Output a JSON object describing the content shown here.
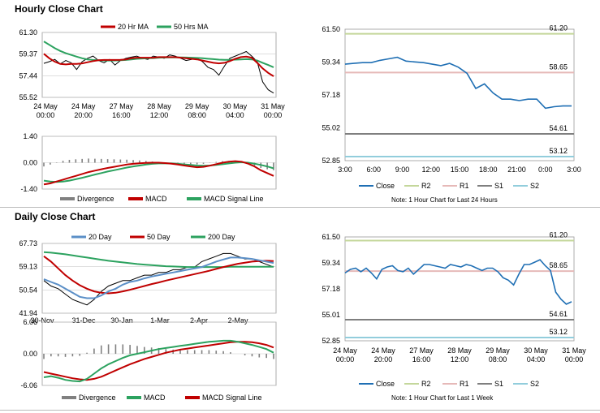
{
  "hourly": {
    "title": "Hourly Close Chart",
    "price_chart": {
      "type": "line",
      "legend": [
        "20 Hr MA",
        "50 Hrs MA"
      ],
      "colors": {
        "ma20": "#c00000",
        "ma50": "#2ca25f",
        "price": "#000000"
      },
      "y_ticks": [
        "61.30",
        "59.37",
        "57.44",
        "55.52"
      ],
      "ylim": [
        55.52,
        61.3
      ],
      "x_ticks": [
        [
          "24 May",
          "00:00"
        ],
        [
          "24 May",
          "20:00"
        ],
        [
          "27 May",
          "16:00"
        ],
        [
          "28 May",
          "12:00"
        ],
        [
          "29 May",
          "08:00"
        ],
        [
          "30 May",
          "04:00"
        ],
        [
          "31 May",
          "00:00"
        ]
      ],
      "price": [
        58.55,
        58.7,
        58.9,
        58.5,
        58.8,
        58.6,
        58.0,
        58.7,
        59.0,
        59.2,
        58.8,
        58.6,
        58.9,
        58.4,
        58.8,
        59.0,
        59.1,
        59.2,
        59.0,
        58.9,
        59.2,
        59.1,
        59.0,
        59.3,
        59.2,
        59.0,
        58.8,
        58.9,
        59.0,
        58.7,
        58.2,
        58.0,
        57.5,
        58.3,
        59.0,
        59.2,
        59.4,
        59.6,
        59.2,
        58.7,
        56.9,
        56.2,
        55.9
      ],
      "ma20": [
        59.4,
        59.0,
        58.7,
        58.5,
        58.45,
        58.5,
        58.5,
        58.55,
        58.65,
        58.75,
        58.82,
        58.85,
        58.85,
        58.85,
        58.86,
        58.9,
        59.0,
        59.05,
        59.05,
        59.05,
        59.05,
        59.1,
        59.1,
        59.1,
        59.1,
        59.05,
        59.0,
        58.95,
        58.9,
        58.8,
        58.7,
        58.6,
        58.55,
        58.6,
        58.75,
        58.95,
        59.1,
        59.15,
        59.05,
        58.6,
        58.1,
        57.7,
        57.4
      ],
      "ma50": [
        60.5,
        60.2,
        59.9,
        59.65,
        59.45,
        59.3,
        59.15,
        59.0,
        58.9,
        58.85,
        58.82,
        58.8,
        58.8,
        58.8,
        58.82,
        58.85,
        58.9,
        58.95,
        58.98,
        59.0,
        59.02,
        59.05,
        59.07,
        59.08,
        59.09,
        59.08,
        59.07,
        59.05,
        59.03,
        59.0,
        58.96,
        58.92,
        58.88,
        58.86,
        58.86,
        58.88,
        58.9,
        58.92,
        58.9,
        58.8,
        58.6,
        58.4,
        58.2
      ]
    },
    "macd_chart": {
      "type": "line",
      "y_ticks": [
        "1.40",
        "0.00",
        "-1.40"
      ],
      "ylim": [
        -1.4,
        1.4
      ],
      "legend": [
        "Divergence",
        "MACD",
        "MACD Signal Line"
      ],
      "colors": {
        "divergence": "#808080",
        "macd": "#c00000",
        "signal": "#2ca25f"
      },
      "macd": [
        -1.15,
        -1.1,
        -1.0,
        -0.9,
        -0.8,
        -0.7,
        -0.6,
        -0.5,
        -0.42,
        -0.35,
        -0.28,
        -0.22,
        -0.16,
        -0.1,
        -0.06,
        -0.03,
        -0.01,
        0.0,
        0.0,
        -0.02,
        -0.05,
        -0.1,
        -0.15,
        -0.2,
        -0.24,
        -0.22,
        -0.16,
        -0.08,
        0.0,
        0.05,
        0.08,
        0.05,
        -0.05,
        -0.2,
        -0.4,
        -0.55,
        -0.7
      ],
      "signal": [
        -0.95,
        -1.0,
        -1.02,
        -1.0,
        -0.95,
        -0.88,
        -0.8,
        -0.72,
        -0.63,
        -0.55,
        -0.47,
        -0.4,
        -0.33,
        -0.26,
        -0.2,
        -0.15,
        -0.1,
        -0.06,
        -0.04,
        -0.03,
        -0.04,
        -0.06,
        -0.09,
        -0.12,
        -0.15,
        -0.16,
        -0.15,
        -0.12,
        -0.08,
        -0.04,
        0.0,
        0.02,
        0.0,
        -0.05,
        -0.12,
        -0.2,
        -0.3
      ]
    },
    "pivot_chart": {
      "type": "line",
      "y_ticks": [
        "61.50",
        "59.34",
        "57.18",
        "55.02",
        "52.85"
      ],
      "ylim": [
        52.85,
        61.5
      ],
      "x_ticks": [
        "3:00",
        "6:00",
        "9:00",
        "12:00",
        "15:00",
        "18:00",
        "21:00",
        "0:00",
        "3:00"
      ],
      "close": [
        59.2,
        59.25,
        59.3,
        59.3,
        59.45,
        59.55,
        59.65,
        59.4,
        59.35,
        59.3,
        59.2,
        59.1,
        59.25,
        59.0,
        58.6,
        57.6,
        57.9,
        57.3,
        56.9,
        56.9,
        56.8,
        56.9,
        56.9,
        56.3,
        56.4,
        56.45,
        56.45
      ],
      "levels": [
        {
          "name": "R2",
          "value": 61.2,
          "label": "61.20",
          "color": "#c4d79b"
        },
        {
          "name": "R1",
          "value": 58.65,
          "label": "58.65",
          "color": "#e6b9b8"
        },
        {
          "name": "S1",
          "value": 54.61,
          "label": "54.61",
          "color": "#7f7f7f"
        },
        {
          "name": "S2",
          "value": 53.12,
          "label": "53.12",
          "color": "#92cddc"
        }
      ],
      "close_color": "#1f6fb4",
      "legend": [
        "Close",
        "R2",
        "R1",
        "S1",
        "S2"
      ],
      "note": "Note: 1 Hour Chart for Last 24 Hours"
    }
  },
  "daily": {
    "title": "Daily Close Chart",
    "price_chart": {
      "type": "line",
      "legend": [
        "20 Day",
        "50 Day",
        "200 Day"
      ],
      "colors": {
        "d20": "#5b8fc7",
        "d50": "#c00000",
        "d200": "#2ca25f",
        "price": "#000000"
      },
      "y_ticks": [
        "67.73",
        "59.13",
        "50.54",
        "41.94"
      ],
      "ylim": [
        41.94,
        67.73
      ],
      "x_ticks": [
        "30-Nov",
        "31-Dec",
        "30-Jan",
        "1-Mar",
        "2-Apr",
        "2-May"
      ],
      "price": [
        54,
        52,
        51,
        49,
        47,
        46,
        45,
        47,
        50,
        52,
        53,
        54,
        54,
        55,
        56,
        56,
        57,
        57,
        58,
        58,
        59,
        59,
        61,
        62,
        63,
        64,
        64,
        63,
        62,
        62,
        61,
        60,
        59
      ],
      "d20": [
        54.5,
        53.5,
        52.5,
        51,
        49.5,
        48,
        47.5,
        47.5,
        48.5,
        50,
        51,
        52.5,
        53.5,
        54,
        54.8,
        55.5,
        56,
        56.5,
        57,
        57.5,
        58,
        58.5,
        59,
        60,
        61,
        61.8,
        62.5,
        62.5,
        62.3,
        62,
        61.5,
        61,
        60.5
      ],
      "d50": [
        63,
        61,
        58.5,
        56,
        54,
        52.3,
        51,
        50,
        49.5,
        49.3,
        49.5,
        50,
        50.6,
        51.3,
        52,
        52.7,
        53.3,
        54,
        54.6,
        55.2,
        55.8,
        56.4,
        57,
        57.6,
        58.3,
        59,
        59.6,
        60.2,
        60.6,
        61,
        61.2,
        61.3,
        61.2
      ],
      "d200": [
        64.5,
        64.3,
        64,
        63.7,
        63.3,
        62.9,
        62.5,
        62.1,
        61.7,
        61.3,
        61,
        60.7,
        60.4,
        60.1,
        59.9,
        59.7,
        59.5,
        59.3,
        59.2,
        59.1,
        59.0,
        59.0,
        59.0,
        59.0,
        59.0,
        59.0,
        59.1,
        59.1,
        59.1,
        59.1,
        59.1,
        59.1,
        59.1
      ]
    },
    "macd_chart": {
      "type": "line",
      "y_ticks": [
        "6.06",
        "0.00",
        "-6.06"
      ],
      "ylim": [
        -6.06,
        6.06
      ],
      "legend": [
        "Divergence",
        "MACD",
        "MACD Signal Line"
      ],
      "colors": {
        "divergence": "#808080",
        "macd": "#2ca25f",
        "signal": "#c00000"
      },
      "macd": [
        -4.5,
        -4.3,
        -4.6,
        -5.0,
        -5.2,
        -5.3,
        -4.8,
        -3.8,
        -2.8,
        -2.0,
        -1.4,
        -0.8,
        -0.3,
        0.0,
        0.3,
        0.6,
        0.9,
        1.1,
        1.3,
        1.5,
        1.7,
        1.9,
        2.1,
        2.3,
        2.4,
        2.5,
        2.5,
        2.3,
        2.0,
        1.7,
        1.3,
        0.9,
        0.2
      ],
      "signal": [
        -3.5,
        -3.8,
        -4.1,
        -4.4,
        -4.7,
        -4.9,
        -5.0,
        -4.8,
        -4.4,
        -3.8,
        -3.2,
        -2.6,
        -2.0,
        -1.5,
        -1.0,
        -0.6,
        -0.2,
        0.2,
        0.5,
        0.8,
        1.0,
        1.2,
        1.4,
        1.6,
        1.8,
        2.0,
        2.2,
        2.3,
        2.3,
        2.2,
        2.0,
        1.7,
        1.2
      ]
    },
    "pivot_chart": {
      "type": "line",
      "y_ticks": [
        "61.50",
        "59.34",
        "57.18",
        "55.01",
        "52.85"
      ],
      "ylim": [
        52.85,
        61.5
      ],
      "x_ticks": [
        [
          "24 May",
          "00:00"
        ],
        [
          "24 May",
          "20:00"
        ],
        [
          "27 May",
          "16:00"
        ],
        [
          "28 May",
          "12:00"
        ],
        [
          "29 May",
          "08:00"
        ],
        [
          "30 May",
          "04:00"
        ],
        [
          "31 May",
          "00:00"
        ]
      ],
      "close": [
        58.5,
        58.8,
        58.9,
        58.6,
        58.9,
        58.5,
        58.0,
        58.8,
        59.0,
        59.1,
        58.7,
        58.6,
        58.9,
        58.4,
        58.8,
        59.2,
        59.2,
        59.1,
        59.0,
        58.9,
        59.2,
        59.1,
        59.0,
        59.2,
        59.1,
        58.9,
        58.7,
        58.9,
        58.9,
        58.6,
        58.1,
        57.9,
        57.5,
        58.4,
        59.2,
        59.2,
        59.4,
        59.6,
        59.1,
        58.7,
        56.9,
        56.3,
        55.9,
        56.1
      ],
      "levels": [
        {
          "name": "R2",
          "value": 61.2,
          "label": "61.20",
          "color": "#c4d79b"
        },
        {
          "name": "R1",
          "value": 58.65,
          "label": "58.65",
          "color": "#e6b9b8"
        },
        {
          "name": "S1",
          "value": 54.61,
          "label": "54.61",
          "color": "#7f7f7f"
        },
        {
          "name": "S2",
          "value": 53.12,
          "label": "53.12",
          "color": "#92cddc"
        }
      ],
      "close_color": "#1f6fb4",
      "legend": [
        "Close",
        "R2",
        "R1",
        "S1",
        "S2"
      ],
      "note": "Note: 1 Hour Chart for Last 1 Week"
    }
  }
}
